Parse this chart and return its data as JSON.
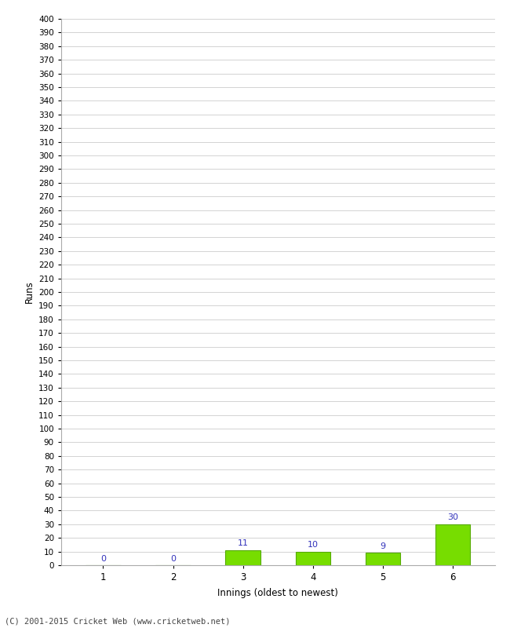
{
  "categories": [
    1,
    2,
    3,
    4,
    5,
    6
  ],
  "values": [
    0,
    0,
    11,
    10,
    9,
    30
  ],
  "bar_color": "#77dd00",
  "bar_edge_color": "#55aa00",
  "label_color": "#3333bb",
  "xlabel": "Innings (oldest to newest)",
  "ylabel": "Runs",
  "ylim": [
    0,
    400
  ],
  "background_color": "#ffffff",
  "grid_color": "#cccccc",
  "footer": "(C) 2001-2015 Cricket Web (www.cricketweb.net)"
}
